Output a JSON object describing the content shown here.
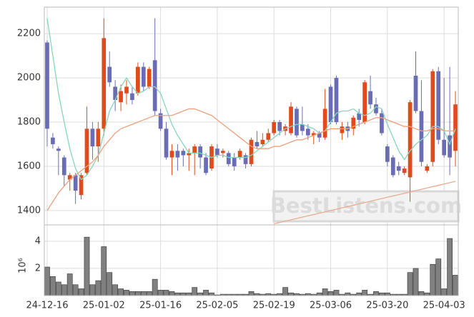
{
  "chart_data": {
    "type": "candlestick",
    "categories": [
      "24-12-16",
      null,
      null,
      null,
      null,
      null,
      null,
      null,
      null,
      null,
      "25-01-02",
      null,
      null,
      null,
      null,
      null,
      null,
      null,
      null,
      null,
      "25-01-16",
      null,
      null,
      null,
      null,
      null,
      null,
      null,
      null,
      null,
      "25-02-05",
      null,
      null,
      null,
      null,
      null,
      null,
      null,
      null,
      null,
      "25-02-19",
      null,
      null,
      null,
      null,
      null,
      null,
      null,
      null,
      null,
      "25-03-06",
      null,
      null,
      null,
      null,
      null,
      null,
      null,
      null,
      null,
      "25-03-20",
      null,
      null,
      null,
      null,
      null,
      null,
      null,
      null,
      null,
      "25-04-03",
      null,
      null
    ],
    "open": [
      2160,
      1730,
      1680,
      1640,
      1540,
      1560,
      1470,
      1570,
      1770,
      1690,
      1770,
      2050,
      1960,
      1890,
      1930,
      1930,
      1930,
      2050,
      1960,
      2080,
      1840,
      1770,
      1640,
      1670,
      1670,
      1650,
      1660,
      1690,
      1640,
      1590,
      1680,
      1660,
      1660,
      1640,
      1640,
      1650,
      1610,
      1710,
      1700,
      1720,
      1750,
      1800,
      1760,
      1750,
      1860,
      1790,
      1770,
      1740,
      1750,
      1730,
      1960,
      2000,
      1750,
      1780,
      1770,
      1840,
      1800,
      1940,
      1880,
      1840,
      1690,
      1640,
      1600,
      1570,
      1550,
      2010,
      1850,
      1580,
      1620,
      2030,
      1720,
      1740,
      1670
    ],
    "high": [
      2170,
      1750,
      1690,
      1650,
      1570,
      1570,
      1570,
      1870,
      1800,
      1800,
      2270,
      2120,
      1990,
      1970,
      1990,
      1960,
      2070,
      2070,
      2050,
      2270,
      1860,
      1800,
      1700,
      1700,
      1680,
      1680,
      1700,
      1700,
      1660,
      1700,
      1700,
      1680,
      1670,
      1660,
      1680,
      1660,
      1730,
      1760,
      1750,
      1770,
      1810,
      1810,
      1790,
      1890,
      1870,
      1870,
      1790,
      1760,
      1760,
      1950,
      1970,
      2010,
      1800,
      1800,
      1830,
      1860,
      1990,
      2010,
      1910,
      1860,
      1700,
      1650,
      1620,
      1600,
      1900,
      2120,
      1990,
      1610,
      2040,
      2050,
      2000,
      2050,
      1940
    ],
    "low": [
      1690,
      1680,
      1560,
      1510,
      1490,
      1430,
      1450,
      1560,
      1630,
      1620,
      1740,
      1960,
      1850,
      1850,
      1880,
      1880,
      1920,
      1940,
      1950,
      1830,
      1760,
      1630,
      1560,
      1580,
      1600,
      1580,
      1560,
      1590,
      1560,
      1580,
      1640,
      1640,
      1600,
      1580,
      1630,
      1590,
      1600,
      1680,
      1690,
      1710,
      1740,
      1740,
      1740,
      1740,
      1730,
      1740,
      1720,
      1700,
      1710,
      1720,
      1790,
      1790,
      1720,
      1730,
      1740,
      1780,
      1790,
      1860,
      1830,
      1740,
      1600,
      1550,
      1560,
      1560,
      1440,
      1840,
      1600,
      1570,
      1600,
      1700,
      1640,
      1560,
      1600
    ],
    "close": [
      1770,
      1700,
      1670,
      1560,
      1560,
      1490,
      1560,
      1770,
      1690,
      1770,
      2180,
      1980,
      1900,
      1940,
      1960,
      1900,
      2050,
      1960,
      2040,
      1850,
      1770,
      1640,
      1670,
      1640,
      1650,
      1660,
      1690,
      1640,
      1570,
      1690,
      1650,
      1670,
      1610,
      1600,
      1670,
      1610,
      1720,
      1690,
      1720,
      1750,
      1800,
      1760,
      1780,
      1870,
      1740,
      1760,
      1740,
      1750,
      1730,
      1860,
      1800,
      1800,
      1780,
      1760,
      1820,
      1810,
      1980,
      1880,
      1840,
      1750,
      1620,
      1560,
      1580,
      1590,
      1890,
      1850,
      1620,
      1600,
      2030,
      1720,
      1650,
      1640,
      1880
    ],
    "up_color": "#e04b1b",
    "down_color": "#6a6db5",
    "lines": [
      {
        "color": "#86d6bf",
        "values": [
          2270,
          2100,
          1930,
          1800,
          1680,
          1590,
          1540,
          1560,
          1600,
          1650,
          1750,
          1850,
          1900,
          1960,
          2000,
          1960,
          1930,
          1940,
          1960,
          1960,
          1930,
          1860,
          1790,
          1740,
          1700,
          1660,
          1660,
          1660,
          1650,
          1640,
          1650,
          1650,
          1640,
          1640,
          1640,
          1640,
          1650,
          1670,
          1690,
          1710,
          1730,
          1750,
          1770,
          1780,
          1790,
          1790,
          1780,
          1770,
          1750,
          1760,
          1800,
          1840,
          1850,
          1850,
          1860,
          1840,
          1830,
          1840,
          1870,
          1860,
          1790,
          1730,
          1670,
          1630,
          1670,
          1700,
          1720,
          1740,
          1780,
          1780,
          1760,
          1700,
          1770
        ]
      },
      {
        "color": "#eea07c",
        "values": [
          1400,
          1440,
          1480,
          1510,
          1540,
          1560,
          1580,
          1600,
          1620,
          1650,
          1690,
          1720,
          1750,
          1770,
          1780,
          1790,
          1800,
          1810,
          1820,
          1830,
          1830,
          1830,
          1830,
          1840,
          1850,
          1860,
          1860,
          1850,
          1840,
          1830,
          1810,
          1790,
          1770,
          1750,
          1730,
          1710,
          1690,
          1680,
          1680,
          1680,
          1690,
          1690,
          1700,
          1710,
          1720,
          1720,
          1730,
          1740,
          1750,
          1760,
          1770,
          1770,
          1770,
          1770,
          1780,
          1790,
          1800,
          1810,
          1820,
          1820,
          1810,
          1800,
          1790,
          1780,
          1780,
          1770,
          1760,
          1760,
          1770,
          1770,
          1760,
          1760,
          1760
        ]
      },
      {
        "color": "#e9ad92",
        "values": [
          null,
          null,
          null,
          null,
          null,
          null,
          null,
          null,
          null,
          null,
          null,
          null,
          null,
          null,
          null,
          null,
          null,
          null,
          null,
          null,
          null,
          null,
          null,
          null,
          null,
          null,
          null,
          null,
          null,
          null,
          null,
          null,
          null,
          null,
          null,
          null,
          null,
          null,
          null,
          null,
          1340,
          1346,
          1352,
          1358,
          1364,
          1370,
          1376,
          1382,
          1388,
          1394,
          1400,
          1406,
          1412,
          1418,
          1424,
          1430,
          1436,
          1442,
          1448,
          1454,
          1460,
          1466,
          1472,
          1478,
          1484,
          1490,
          1496,
          1502,
          1508,
          1514,
          1520,
          1526,
          1532
        ]
      }
    ],
    "ylim": [
      1335,
      2320
    ],
    "yticks": [
      1400,
      1600,
      1800,
      2000,
      2200
    ],
    "volume": [
      2.1,
      1.4,
      1.0,
      0.8,
      1.6,
      0.8,
      0.5,
      4.3,
      0.8,
      1.1,
      3.6,
      1.7,
      0.8,
      0.5,
      0.4,
      0.3,
      0.3,
      0.3,
      0.3,
      1.2,
      0.4,
      0.4,
      0.3,
      0.2,
      0.2,
      0.2,
      0.6,
      0.2,
      0.4,
      0.2,
      0.05,
      0.1,
      0.1,
      0.1,
      0.1,
      0.1,
      0.3,
      0.15,
      0.1,
      0.15,
      0.1,
      0.15,
      0.6,
      0.2,
      0.15,
      0.1,
      0.15,
      0.1,
      0.2,
      0.5,
      0.3,
      0.4,
      0.1,
      0.2,
      0.1,
      0.2,
      0.4,
      0.1,
      0.3,
      0.2,
      0.2,
      0.1,
      0.1,
      0.1,
      1.7,
      2.0,
      0.3,
      0.2,
      2.3,
      2.7,
      0.5,
      4.2,
      1.5
    ],
    "volume_color": "#808080",
    "volume_ylim": [
      0,
      5.2
    ],
    "volume_yticks": [
      2,
      4
    ],
    "volume_axis_label": "10⁶",
    "watermark": "BestListens.com",
    "grid": true
  }
}
